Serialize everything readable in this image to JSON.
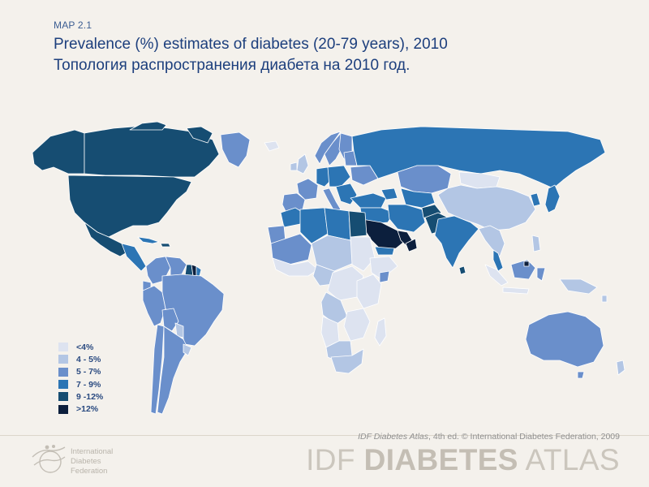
{
  "header": {
    "map_label": "MAP 2.1",
    "title_en": "Prevalence (%) estimates of diabetes (20-79 years), 2010",
    "title_ru": "Топология распространения  диабета на 2010 год."
  },
  "legend": [
    {
      "label": "<4%",
      "color": "#dde3f0"
    },
    {
      "label": "4 - 5%",
      "color": "#b3c6e4"
    },
    {
      "label": "5 - 7%",
      "color": "#6a8fcb"
    },
    {
      "label": "7 - 9%",
      "color": "#2c75b4"
    },
    {
      "label": "9 -12%",
      "color": "#164d72"
    },
    {
      "label": ">12%",
      "color": "#0c1f3d"
    }
  ],
  "footer": {
    "credit_italic": "IDF Diabetes Atlas",
    "credit_rest": ", 4th ed.  © International Diabetes Federation, 2009",
    "brand_light_1": "IDF ",
    "brand_bold": "DIABETES",
    "brand_light_2": " ATLAS",
    "org_name_line1": "International",
    "org_name_line2": "Diabetes",
    "org_name_line3": "Federation"
  },
  "colors": {
    "background": "#f4f1ec",
    "title": "#1d3f7d",
    "footer_gray": "#cbc6bd"
  }
}
